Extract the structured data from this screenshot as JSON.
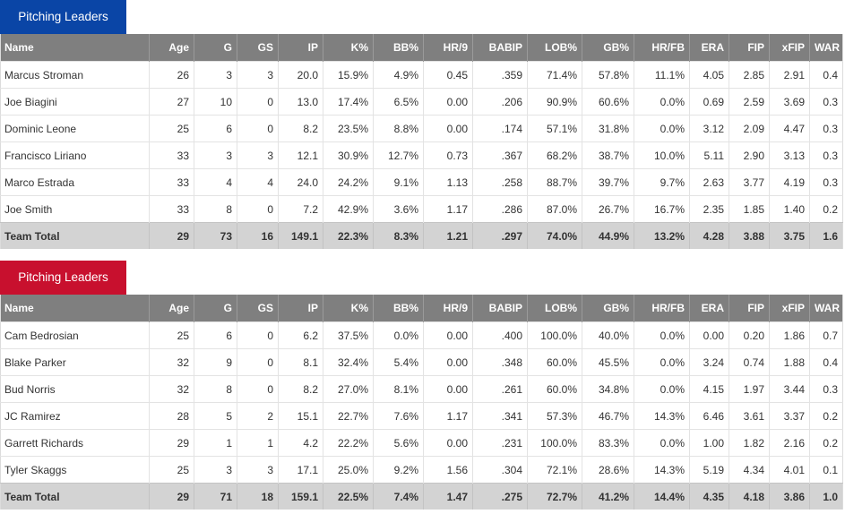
{
  "columns": [
    "Name",
    "Age",
    "G",
    "GS",
    "IP",
    "K%",
    "BB%",
    "HR/9",
    "BABIP",
    "LOB%",
    "GB%",
    "HR/FB",
    "ERA",
    "FIP",
    "xFIP",
    "WAR"
  ],
  "tables": [
    {
      "title": "Pitching Leaders",
      "accent_color": "#0a45a6",
      "rows": [
        [
          "Marcus Stroman",
          "26",
          "3",
          "3",
          "20.0",
          "15.9%",
          "4.9%",
          "0.45",
          ".359",
          "71.4%",
          "57.8%",
          "11.1%",
          "4.05",
          "2.85",
          "2.91",
          "0.4"
        ],
        [
          "Joe Biagini",
          "27",
          "10",
          "0",
          "13.0",
          "17.4%",
          "6.5%",
          "0.00",
          ".206",
          "90.9%",
          "60.6%",
          "0.0%",
          "0.69",
          "2.59",
          "3.69",
          "0.3"
        ],
        [
          "Dominic Leone",
          "25",
          "6",
          "0",
          "8.2",
          "23.5%",
          "8.8%",
          "0.00",
          ".174",
          "57.1%",
          "31.8%",
          "0.0%",
          "3.12",
          "2.09",
          "4.47",
          "0.3"
        ],
        [
          "Francisco Liriano",
          "33",
          "3",
          "3",
          "12.1",
          "30.9%",
          "12.7%",
          "0.73",
          ".367",
          "68.2%",
          "38.7%",
          "10.0%",
          "5.11",
          "2.90",
          "3.13",
          "0.3"
        ],
        [
          "Marco Estrada",
          "33",
          "4",
          "4",
          "24.0",
          "24.2%",
          "9.1%",
          "1.13",
          ".258",
          "88.7%",
          "39.7%",
          "9.7%",
          "2.63",
          "3.77",
          "4.19",
          "0.3"
        ],
        [
          "Joe Smith",
          "33",
          "8",
          "0",
          "7.2",
          "42.9%",
          "3.6%",
          "1.17",
          ".286",
          "87.0%",
          "26.7%",
          "16.7%",
          "2.35",
          "1.85",
          "1.40",
          "0.2"
        ]
      ],
      "total": [
        "Team Total",
        "29",
        "73",
        "16",
        "149.1",
        "22.3%",
        "8.3%",
        "1.21",
        ".297",
        "74.0%",
        "44.9%",
        "13.2%",
        "4.28",
        "3.88",
        "3.75",
        "1.6"
      ]
    },
    {
      "title": "Pitching Leaders",
      "accent_color": "#c8102e",
      "rows": [
        [
          "Cam Bedrosian",
          "25",
          "6",
          "0",
          "6.2",
          "37.5%",
          "0.0%",
          "0.00",
          ".400",
          "100.0%",
          "40.0%",
          "0.0%",
          "0.00",
          "0.20",
          "1.86",
          "0.7"
        ],
        [
          "Blake Parker",
          "32",
          "9",
          "0",
          "8.1",
          "32.4%",
          "5.4%",
          "0.00",
          ".348",
          "60.0%",
          "45.5%",
          "0.0%",
          "3.24",
          "0.74",
          "1.88",
          "0.4"
        ],
        [
          "Bud Norris",
          "32",
          "8",
          "0",
          "8.2",
          "27.0%",
          "8.1%",
          "0.00",
          ".261",
          "60.0%",
          "34.8%",
          "0.0%",
          "4.15",
          "1.97",
          "3.44",
          "0.3"
        ],
        [
          "JC Ramirez",
          "28",
          "5",
          "2",
          "15.1",
          "22.7%",
          "7.6%",
          "1.17",
          ".341",
          "57.3%",
          "46.7%",
          "14.3%",
          "6.46",
          "3.61",
          "3.37",
          "0.2"
        ],
        [
          "Garrett Richards",
          "29",
          "1",
          "1",
          "4.2",
          "22.2%",
          "5.6%",
          "0.00",
          ".231",
          "100.0%",
          "83.3%",
          "0.0%",
          "1.00",
          "1.82",
          "2.16",
          "0.2"
        ],
        [
          "Tyler Skaggs",
          "25",
          "3",
          "3",
          "17.1",
          "25.0%",
          "9.2%",
          "1.56",
          ".304",
          "72.1%",
          "28.6%",
          "14.3%",
          "5.19",
          "4.34",
          "4.01",
          "0.1"
        ]
      ],
      "total": [
        "Team Total",
        "29",
        "71",
        "18",
        "159.1",
        "22.5%",
        "7.4%",
        "1.47",
        ".275",
        "72.7%",
        "41.2%",
        "14.4%",
        "4.35",
        "4.18",
        "3.86",
        "1.0"
      ]
    }
  ]
}
